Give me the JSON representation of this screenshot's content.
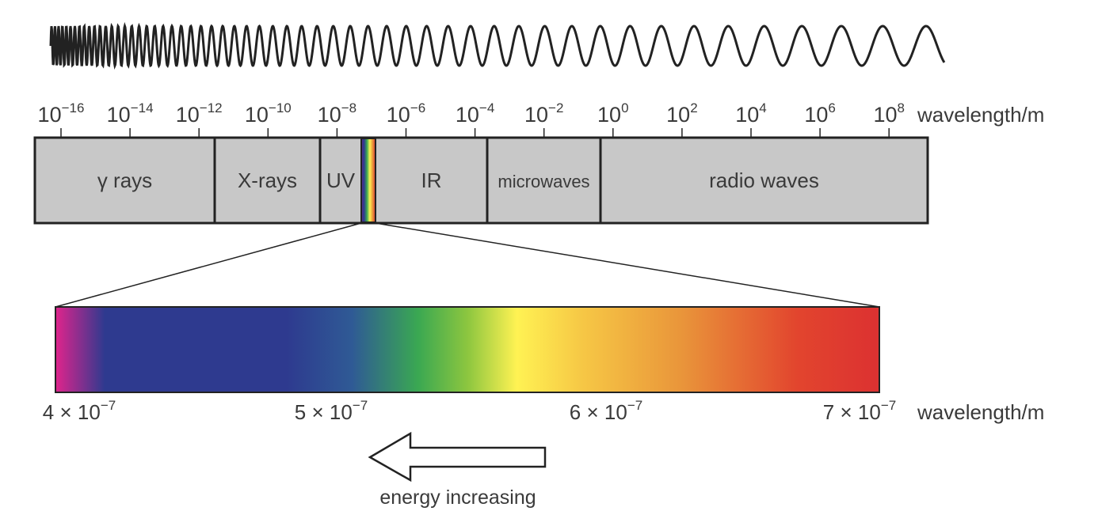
{
  "spectrum": {
    "axis_label": "wavelength/m",
    "exponent_ticks": [
      {
        "base": "10",
        "exp": "−16"
      },
      {
        "base": "10",
        "exp": "−14"
      },
      {
        "base": "10",
        "exp": "−12"
      },
      {
        "base": "10",
        "exp": "−10"
      },
      {
        "base": "10",
        "exp": "−8"
      },
      {
        "base": "10",
        "exp": "−6"
      },
      {
        "base": "10",
        "exp": "−4"
      },
      {
        "base": "10",
        "exp": "−2"
      },
      {
        "base": "10",
        "exp": "0"
      },
      {
        "base": "10",
        "exp": "2"
      },
      {
        "base": "10",
        "exp": "4"
      },
      {
        "base": "10",
        "exp": "6"
      },
      {
        "base": "10",
        "exp": "8"
      }
    ],
    "bands": [
      {
        "name": "γ rays"
      },
      {
        "name": "X-rays"
      },
      {
        "name": "UV"
      },
      {
        "name": "IR"
      },
      {
        "name": "microwaves"
      },
      {
        "name": "radio waves"
      }
    ]
  },
  "visible": {
    "axis_label": "wavelength/m",
    "ticks": [
      "4 × 10",
      "5 × 10",
      "6 × 10",
      "7 × 10"
    ],
    "tick_exp": "−7",
    "gradient_colors": [
      "#e0248c",
      "#2e3a8f",
      "#2e3a8f",
      "#2f5a95",
      "#3aa852",
      "#8cc63f",
      "#fff253",
      "#f6c745",
      "#e9953a",
      "#e2452e",
      "#dc3131"
    ]
  },
  "energy": {
    "label": "energy increasing"
  }
}
